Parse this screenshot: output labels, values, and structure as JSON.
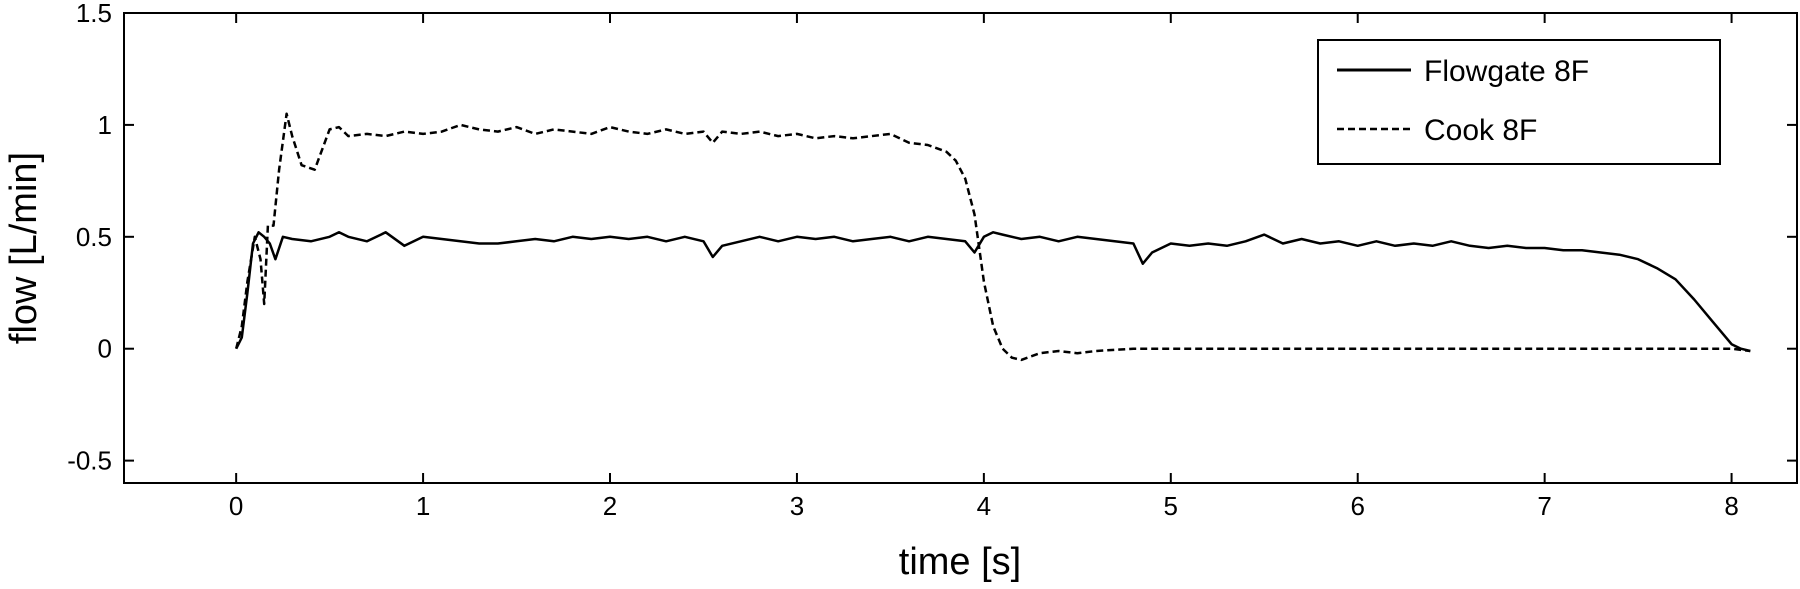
{
  "chart_data": {
    "type": "line",
    "title": "",
    "xlabel": "time [s]",
    "ylabel": "flow [L/min]",
    "xlim": [
      -0.6,
      8.35
    ],
    "ylim": [
      -0.6,
      1.5
    ],
    "xticks": [
      0,
      1,
      2,
      3,
      4,
      5,
      6,
      7,
      8
    ],
    "yticks": [
      -0.5,
      0,
      0.5,
      1,
      1.5
    ],
    "xtick_labels": [
      "0",
      "1",
      "2",
      "3",
      "4",
      "5",
      "6",
      "7",
      "8"
    ],
    "ytick_labels": [
      "-0.5",
      "0",
      "0.5",
      "1",
      "1.5"
    ],
    "grid": false,
    "legend_position": "top-right",
    "series": [
      {
        "name": "Flowgate 8F",
        "style": "solid",
        "color": "#000000",
        "x": [
          0,
          0.03,
          0.06,
          0.09,
          0.12,
          0.15,
          0.18,
          0.21,
          0.25,
          0.3,
          0.4,
          0.5,
          0.55,
          0.6,
          0.7,
          0.8,
          0.9,
          1.0,
          1.1,
          1.2,
          1.3,
          1.4,
          1.5,
          1.6,
          1.7,
          1.8,
          1.9,
          2.0,
          2.1,
          2.2,
          2.3,
          2.4,
          2.5,
          2.55,
          2.6,
          2.7,
          2.8,
          2.9,
          3.0,
          3.1,
          3.2,
          3.3,
          3.4,
          3.5,
          3.6,
          3.7,
          3.8,
          3.9,
          3.95,
          4.0,
          4.05,
          4.1,
          4.2,
          4.3,
          4.4,
          4.5,
          4.6,
          4.7,
          4.8,
          4.85,
          4.9,
          5.0,
          5.1,
          5.2,
          5.3,
          5.4,
          5.5,
          5.6,
          5.7,
          5.8,
          5.9,
          6.0,
          6.1,
          6.2,
          6.3,
          6.4,
          6.5,
          6.6,
          6.7,
          6.8,
          6.9,
          7.0,
          7.1,
          7.2,
          7.3,
          7.4,
          7.5,
          7.6,
          7.7,
          7.8,
          7.9,
          8.0,
          8.05,
          8.1
        ],
        "y": [
          0,
          0.05,
          0.25,
          0.47,
          0.52,
          0.5,
          0.47,
          0.4,
          0.5,
          0.49,
          0.48,
          0.5,
          0.52,
          0.5,
          0.48,
          0.52,
          0.46,
          0.5,
          0.49,
          0.48,
          0.47,
          0.47,
          0.48,
          0.49,
          0.48,
          0.5,
          0.49,
          0.5,
          0.49,
          0.5,
          0.48,
          0.5,
          0.48,
          0.41,
          0.46,
          0.48,
          0.5,
          0.48,
          0.5,
          0.49,
          0.5,
          0.48,
          0.49,
          0.5,
          0.48,
          0.5,
          0.49,
          0.48,
          0.43,
          0.5,
          0.52,
          0.51,
          0.49,
          0.5,
          0.48,
          0.5,
          0.49,
          0.48,
          0.47,
          0.38,
          0.43,
          0.47,
          0.46,
          0.47,
          0.46,
          0.48,
          0.51,
          0.47,
          0.49,
          0.47,
          0.48,
          0.46,
          0.48,
          0.46,
          0.47,
          0.46,
          0.48,
          0.46,
          0.45,
          0.46,
          0.45,
          0.45,
          0.44,
          0.44,
          0.43,
          0.42,
          0.4,
          0.36,
          0.31,
          0.22,
          0.12,
          0.02,
          0.0,
          -0.01
        ]
      },
      {
        "name": "Cook 8F",
        "style": "dashed",
        "color": "#000000",
        "x": [
          0,
          0.03,
          0.06,
          0.1,
          0.13,
          0.15,
          0.17,
          0.2,
          0.23,
          0.27,
          0.3,
          0.35,
          0.42,
          0.5,
          0.55,
          0.6,
          0.7,
          0.8,
          0.9,
          1.0,
          1.1,
          1.2,
          1.3,
          1.4,
          1.5,
          1.6,
          1.7,
          1.8,
          1.9,
          2.0,
          2.1,
          2.2,
          2.3,
          2.4,
          2.5,
          2.55,
          2.6,
          2.7,
          2.8,
          2.9,
          3.0,
          3.1,
          3.2,
          3.3,
          3.4,
          3.5,
          3.6,
          3.7,
          3.8,
          3.85,
          3.9,
          3.95,
          4.0,
          4.05,
          4.1,
          4.15,
          4.2,
          4.3,
          4.4,
          4.5,
          4.6,
          4.8,
          5.0,
          6.0,
          7.0,
          8.0,
          8.1
        ],
        "y": [
          0,
          0.1,
          0.3,
          0.5,
          0.4,
          0.2,
          0.55,
          0.55,
          0.8,
          1.05,
          0.95,
          0.82,
          0.8,
          0.98,
          0.99,
          0.95,
          0.96,
          0.95,
          0.97,
          0.96,
          0.97,
          1.0,
          0.98,
          0.97,
          0.99,
          0.96,
          0.98,
          0.97,
          0.96,
          0.99,
          0.97,
          0.96,
          0.98,
          0.96,
          0.97,
          0.92,
          0.97,
          0.96,
          0.97,
          0.95,
          0.96,
          0.94,
          0.95,
          0.94,
          0.95,
          0.96,
          0.92,
          0.91,
          0.88,
          0.84,
          0.76,
          0.6,
          0.3,
          0.1,
          0.0,
          -0.04,
          -0.05,
          -0.02,
          -0.01,
          -0.02,
          -0.01,
          0.0,
          0.0,
          0.0,
          0.0,
          0.0,
          -0.01
        ]
      }
    ]
  }
}
